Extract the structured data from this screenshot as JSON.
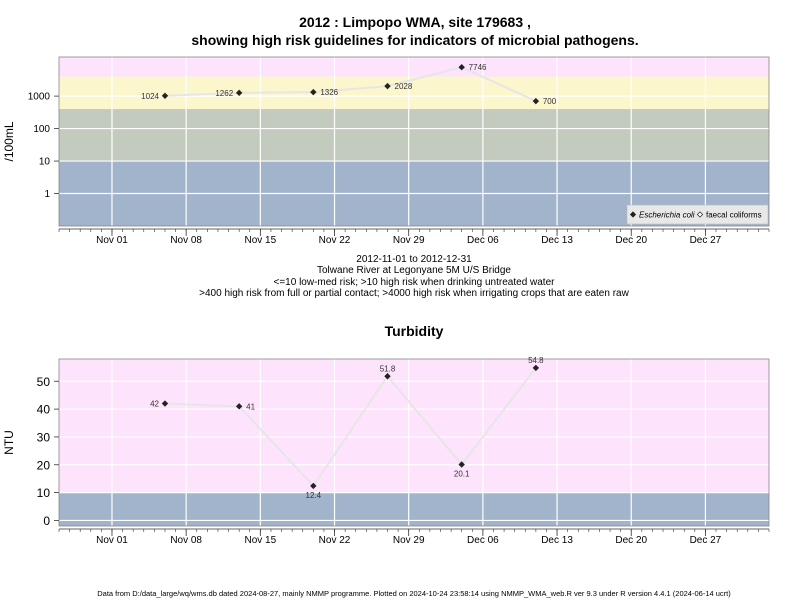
{
  "colors": {
    "band_blue": "#a2b3cc",
    "band_green": "#c3cbbe",
    "band_yellow": "#fbf6cc",
    "band_pink": "#fde3fb",
    "line": "#e6e6e6",
    "marker": "#222222",
    "grid": "#ffffff",
    "axis": "#555555"
  },
  "upper_title": {
    "line1": "2012 : Limpopo WMA, site 179683 ,",
    "line2": "showing high risk guidelines for indicators of microbial pathogens."
  },
  "info_lines": [
    "2012-11-01 to 2012-12-31",
    "Tolwane River at Legonyane 5M U/S Bridge",
    "<=10 low-med risk; >10 high risk when drinking untreated water",
    ">400 high risk from full or partial contact; >4000 high risk when irrigating crops that are eaten raw"
  ],
  "footer": "Data from D:/data_large/wq/wms.db dated 2024-08-27, mainly NMMP programme. Plotted on 2024-10-24 23:58:14 using NMMP_WMA_web.R ver 9.3 under R version 4.4.1 (2024-06-14 ucrt)",
  "chart_data": [
    {
      "type": "line",
      "y_scale": "log",
      "ylabel": "/100mL",
      "xlabel": "",
      "x_tick_labels": [
        "Nov 01",
        "Nov 08",
        "Nov 15",
        "Nov 22",
        "Nov 29",
        "Dec 06",
        "Dec 13",
        "Dec 20",
        "Dec 27"
      ],
      "x_tick_dates": [
        "2012-11-01",
        "2012-11-08",
        "2012-11-15",
        "2012-11-22",
        "2012-11-29",
        "2012-12-06",
        "2012-12-13",
        "2012-12-20",
        "2012-12-27"
      ],
      "xlim": [
        "2012-10-27",
        "2013-01-02"
      ],
      "y_tick_labels": [
        "1",
        "10",
        "100",
        "1000"
      ],
      "y_tick_values": [
        1,
        10,
        100,
        1000
      ],
      "ylim": [
        0.1,
        16000
      ],
      "bands": [
        {
          "from": 0.1,
          "to": 10,
          "color_key": "band_blue"
        },
        {
          "from": 10,
          "to": 400,
          "color_key": "band_green"
        },
        {
          "from": 400,
          "to": 4000,
          "color_key": "band_yellow"
        },
        {
          "from": 4000,
          "to": 16000,
          "color_key": "band_pink"
        }
      ],
      "legend": {
        "placement": "bottom-right",
        "entries": [
          {
            "label": "Escherichia coli",
            "marker": "filled-diamond",
            "italic": true
          },
          {
            "label": "faecal coliforms",
            "marker": "open-diamond",
            "italic": false
          }
        ]
      },
      "series": [
        {
          "name": "Escherichia coli",
          "points": [
            {
              "x": "2012-11-06",
              "y": 1024,
              "label": "1024",
              "label_side": "left"
            },
            {
              "x": "2012-11-13",
              "y": 1262,
              "label": "1262",
              "label_side": "left"
            },
            {
              "x": "2012-11-20",
              "y": 1326,
              "label": "1326",
              "label_side": "right"
            },
            {
              "x": "2012-11-27",
              "y": 2028,
              "label": "2028",
              "label_side": "right"
            },
            {
              "x": "2012-12-04",
              "y": 7746,
              "label": "7746",
              "label_side": "right"
            },
            {
              "x": "2012-12-11",
              "y": 700,
              "label": "700",
              "label_side": "right"
            }
          ]
        }
      ]
    },
    {
      "type": "line",
      "title": "Turbidity",
      "ylabel": "NTU",
      "xlabel": "",
      "x_tick_labels": [
        "Nov 01",
        "Nov 08",
        "Nov 15",
        "Nov 22",
        "Nov 29",
        "Dec 06",
        "Dec 13",
        "Dec 20",
        "Dec 27"
      ],
      "x_tick_dates": [
        "2012-11-01",
        "2012-11-08",
        "2012-11-15",
        "2012-11-22",
        "2012-11-29",
        "2012-12-06",
        "2012-12-13",
        "2012-12-20",
        "2012-12-27"
      ],
      "xlim": [
        "2012-10-27",
        "2013-01-02"
      ],
      "y_tick_labels": [
        "0",
        "10",
        "20",
        "30",
        "40",
        "50"
      ],
      "y_tick_values": [
        0,
        10,
        20,
        30,
        40,
        50
      ],
      "ylim": [
        -2,
        58
      ],
      "bands": [
        {
          "from": -2,
          "to": 10,
          "color_key": "band_blue"
        },
        {
          "from": 10,
          "to": 58,
          "color_key": "band_pink"
        }
      ],
      "series": [
        {
          "name": "",
          "points": [
            {
              "x": "2012-11-06",
              "y": 42,
              "label": "42",
              "label_side": "left"
            },
            {
              "x": "2012-11-13",
              "y": 41,
              "label": "41",
              "label_side": "right"
            },
            {
              "x": "2012-11-20",
              "y": 12.4,
              "label": "12.4",
              "label_side": "below"
            },
            {
              "x": "2012-11-27",
              "y": 51.8,
              "label": "51.8",
              "label_side": "above"
            },
            {
              "x": "2012-12-04",
              "y": 20.1,
              "label": "20.1",
              "label_side": "below"
            },
            {
              "x": "2012-12-11",
              "y": 54.8,
              "label": "54.8",
              "label_side": "above"
            }
          ]
        }
      ]
    }
  ]
}
